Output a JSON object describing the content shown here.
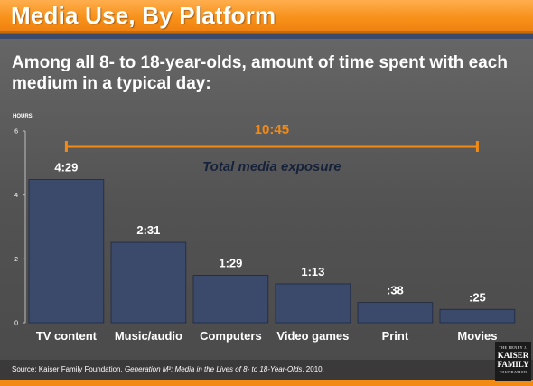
{
  "slide": {
    "title": "Media Use, By Platform",
    "subtitle": "Among all 8- to 18-year-olds, amount of time spent with each medium in a typical day:",
    "source_prefix": "Source: Kaiser Family Foundation, ",
    "source_title": "Generation M²: Media in the Lives of 8- to 18-Year-Olds",
    "source_suffix": ", 2010.",
    "logo": {
      "line1": "THE HENRY J.",
      "line2": "KAISER",
      "line3": "FAMILY",
      "line4": "FOUNDATION"
    }
  },
  "colors": {
    "accent": "#f28a14",
    "bar_fill": "#3b4a6b",
    "stripe": "#3b4a6b"
  },
  "chart_data": {
    "type": "bar",
    "ylabel": "HOURS",
    "ylim": [
      0,
      6
    ],
    "yticks": [
      0,
      2,
      4,
      6
    ],
    "grid": false,
    "categories": [
      "TV content",
      "Music/audio",
      "Computers",
      "Video games",
      "Print",
      "Movies"
    ],
    "values": [
      4.483,
      2.517,
      1.483,
      1.217,
      0.633,
      0.417
    ],
    "data_labels": [
      "4:29",
      "2:31",
      "1:29",
      "1:13",
      ":38",
      ":25"
    ],
    "annotation": {
      "total_label": "10:45",
      "total_value": 10.75,
      "caption": "Total media exposure"
    }
  }
}
